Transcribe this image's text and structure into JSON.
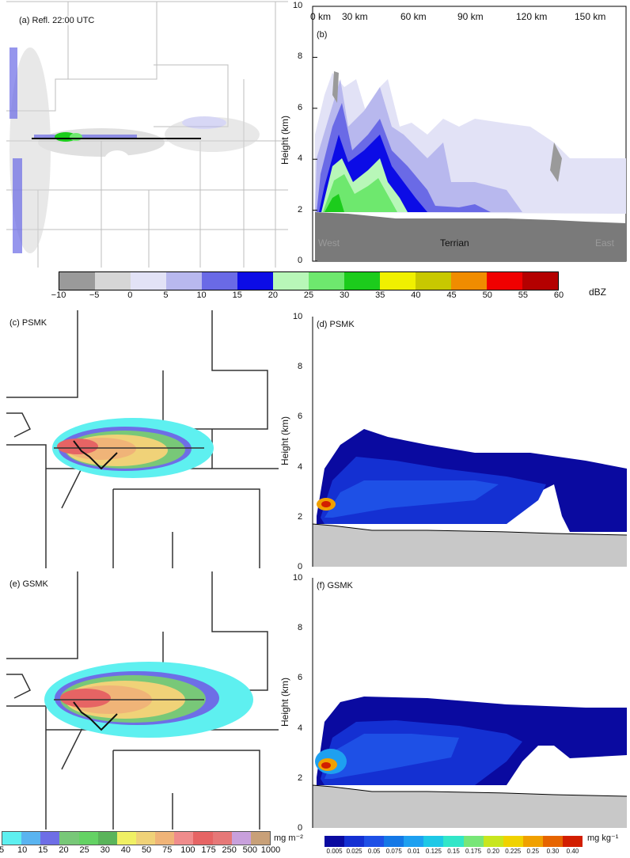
{
  "panel_a": {
    "label": "(a) Refl. 22:00 UTC"
  },
  "panel_b": {
    "label": "(b)",
    "ylabel": "Height (km)",
    "y_ticks": [
      "0",
      "2",
      "4",
      "6",
      "8",
      "10"
    ],
    "top_ticks": [
      "0 km",
      "30 km",
      "60 km",
      "90 km",
      "120 km",
      "150 km"
    ],
    "terrain_label": "Terrian",
    "west_label": "West",
    "east_label": "East"
  },
  "dbz_colorbar": {
    "unit": "dBZ",
    "ticks": [
      "−10",
      "−5",
      "0",
      "5",
      "10",
      "15",
      "20",
      "25",
      "30",
      "35",
      "40",
      "45",
      "50",
      "55",
      "60"
    ],
    "colors": [
      "#9a9a9a",
      "#d6d6d6",
      "#e2e2f6",
      "#b8b8ee",
      "#6a6ae6",
      "#0c0ce6",
      "#b8f7b8",
      "#6ee86e",
      "#1ccc1c",
      "#f0f000",
      "#c8c800",
      "#f08c00",
      "#f00000",
      "#b40000"
    ]
  },
  "panel_c": {
    "label": "(c) PSMK"
  },
  "panel_d": {
    "label": "(d) PSMK",
    "ylabel": "Height (km)",
    "y_ticks": [
      "0",
      "2",
      "4",
      "6",
      "8",
      "10"
    ]
  },
  "panel_e": {
    "label": "(e) GSMK"
  },
  "panel_f": {
    "label": "(f) GSMK",
    "ylabel": "Height (km)",
    "y_ticks": [
      "0",
      "2",
      "4",
      "6",
      "8",
      "10"
    ]
  },
  "mass_colorbar": {
    "unit": "mg m⁻²",
    "ticks": [
      "5",
      "10",
      "15",
      "20",
      "25",
      "30",
      "40",
      "50",
      "75",
      "100",
      "175",
      "250",
      "500",
      "1000"
    ],
    "colors": [
      "#5ef0f0",
      "#5ab4f0",
      "#6e6ee6",
      "#78c878",
      "#64d264",
      "#5ab45a",
      "#f0f064",
      "#f0d278",
      "#f0b478",
      "#f08c8c",
      "#e66464",
      "#e67878",
      "#c8a0dc",
      "#c8a078"
    ]
  },
  "mix_colorbar": {
    "unit": "mg kg⁻¹",
    "ticks": [
      "0.005",
      "0.025",
      "0.05",
      "0.075",
      "0.01",
      "0.125",
      "0.15",
      "0.175",
      "0.20",
      "0.225",
      "0.25",
      "0.30",
      "0.40"
    ],
    "colors": [
      "#0a0aa0",
      "#1430d2",
      "#1e50e6",
      "#1478e6",
      "#1ea0f0",
      "#1ec8e6",
      "#32e6c8",
      "#78e678",
      "#c8e61e",
      "#f0d200",
      "#f0a000",
      "#e66400",
      "#d21e00"
    ]
  }
}
